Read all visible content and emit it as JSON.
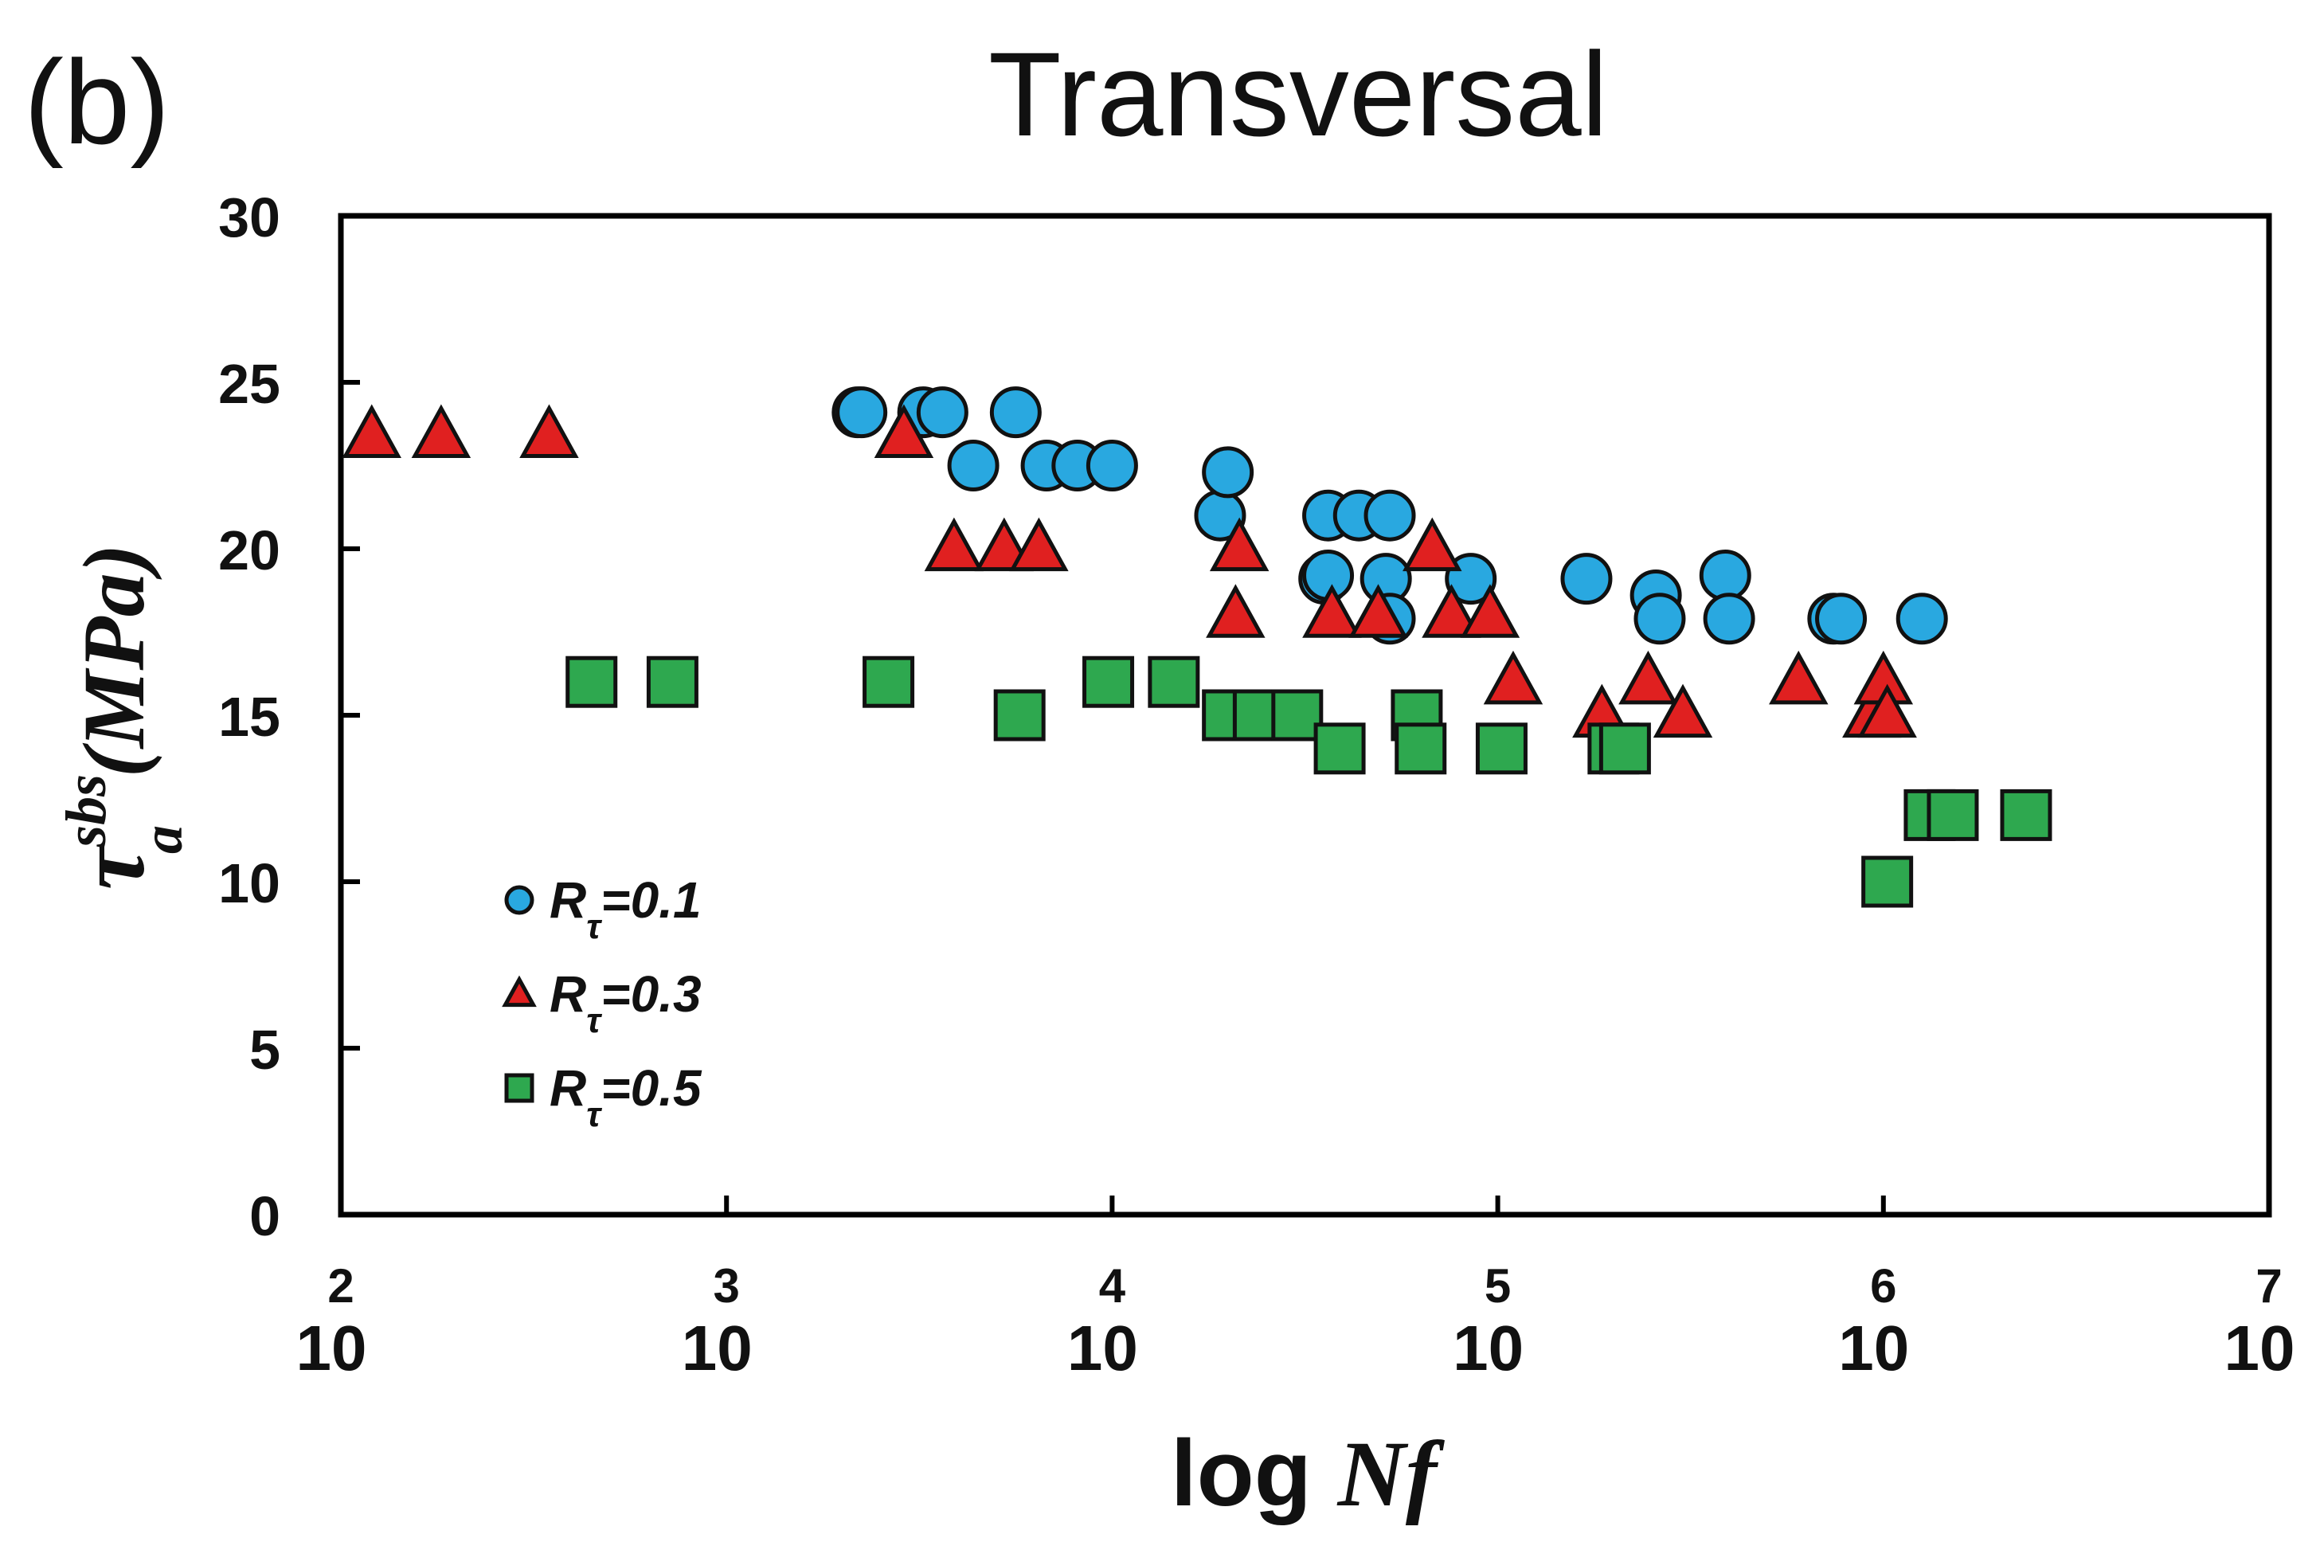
{
  "chart_data": {
    "type": "scatter",
    "panel_label": "(b)",
    "title": "Transversal",
    "xlabel_prefix": "log ",
    "xlabel_var": "Nf",
    "ylabel_main": "τ",
    "ylabel_sup": "sbs",
    "ylabel_sub": "a",
    "ylabel_unit": "(MPa)",
    "x_scale": "log",
    "xlim_exp": [
      2,
      7
    ],
    "ylim": [
      0,
      30
    ],
    "y_ticks": [
      0,
      5,
      10,
      15,
      20,
      25,
      30
    ],
    "x_tick_base": "10",
    "x_tick_exponents": [
      "2",
      "3",
      "4",
      "5",
      "6",
      "7"
    ],
    "legend": {
      "position": "lower-left",
      "entries": [
        {
          "symbol": "R",
          "sub": "τ",
          "value": "=0.1"
        },
        {
          "symbol": "R",
          "sub": "τ",
          "value": "=0.3"
        },
        {
          "symbol": "R",
          "sub": "τ",
          "value": "=0.5"
        }
      ]
    },
    "series": [
      {
        "name": "Rτ=0.1",
        "marker": "circle",
        "color": "#29a8e0",
        "points": [
          [
            3.34,
            24.1
          ],
          [
            3.35,
            24.1
          ],
          [
            3.51,
            24.1
          ],
          [
            3.56,
            24.1
          ],
          [
            3.64,
            22.5
          ],
          [
            3.75,
            24.1
          ],
          [
            3.83,
            22.5
          ],
          [
            3.91,
            22.5
          ],
          [
            4.0,
            22.5
          ],
          [
            4.28,
            21.0
          ],
          [
            4.3,
            22.3
          ],
          [
            4.55,
            19.1
          ],
          [
            4.56,
            19.2
          ],
          [
            4.56,
            21.0
          ],
          [
            4.64,
            21.0
          ],
          [
            4.72,
            21.0
          ],
          [
            4.71,
            19.1
          ],
          [
            4.72,
            17.9
          ],
          [
            4.93,
            19.1
          ],
          [
            5.23,
            19.1
          ],
          [
            5.41,
            18.6
          ],
          [
            5.42,
            17.9
          ],
          [
            5.59,
            19.2
          ],
          [
            5.6,
            17.9
          ],
          [
            5.87,
            17.9
          ],
          [
            5.89,
            17.9
          ],
          [
            6.1,
            17.9
          ]
        ]
      },
      {
        "name": "Rτ=0.3",
        "marker": "triangle",
        "color": "#e02020",
        "points": [
          [
            2.08,
            23.4
          ],
          [
            2.26,
            23.4
          ],
          [
            2.54,
            23.4
          ],
          [
            3.46,
            23.4
          ],
          [
            3.59,
            20.0
          ],
          [
            3.72,
            20.0
          ],
          [
            3.81,
            20.0
          ],
          [
            4.33,
            20.0
          ],
          [
            4.32,
            18.0
          ],
          [
            4.57,
            18.0
          ],
          [
            4.69,
            18.0
          ],
          [
            4.83,
            20.0
          ],
          [
            4.88,
            18.0
          ],
          [
            4.98,
            18.0
          ],
          [
            5.04,
            16.0
          ],
          [
            5.27,
            15.0
          ],
          [
            5.39,
            16.0
          ],
          [
            5.48,
            15.0
          ],
          [
            5.78,
            16.0
          ],
          [
            5.97,
            15.0
          ],
          [
            6.0,
            16.0
          ],
          [
            6.01,
            15.0
          ]
        ]
      },
      {
        "name": "Rτ=0.5",
        "marker": "square",
        "color": "#2ea84f",
        "points": [
          [
            2.65,
            16.0
          ],
          [
            2.86,
            16.0
          ],
          [
            3.42,
            16.0
          ],
          [
            3.76,
            15.0
          ],
          [
            3.99,
            16.0
          ],
          [
            4.16,
            16.0
          ],
          [
            4.3,
            15.0
          ],
          [
            4.38,
            15.0
          ],
          [
            4.48,
            15.0
          ],
          [
            4.59,
            14.0
          ],
          [
            4.79,
            15.0
          ],
          [
            4.8,
            14.0
          ],
          [
            5.01,
            14.0
          ],
          [
            5.3,
            14.0
          ],
          [
            5.33,
            14.0
          ],
          [
            6.01,
            10.0
          ],
          [
            6.12,
            12.0
          ],
          [
            6.18,
            12.0
          ],
          [
            6.37,
            12.0
          ]
        ]
      }
    ]
  }
}
